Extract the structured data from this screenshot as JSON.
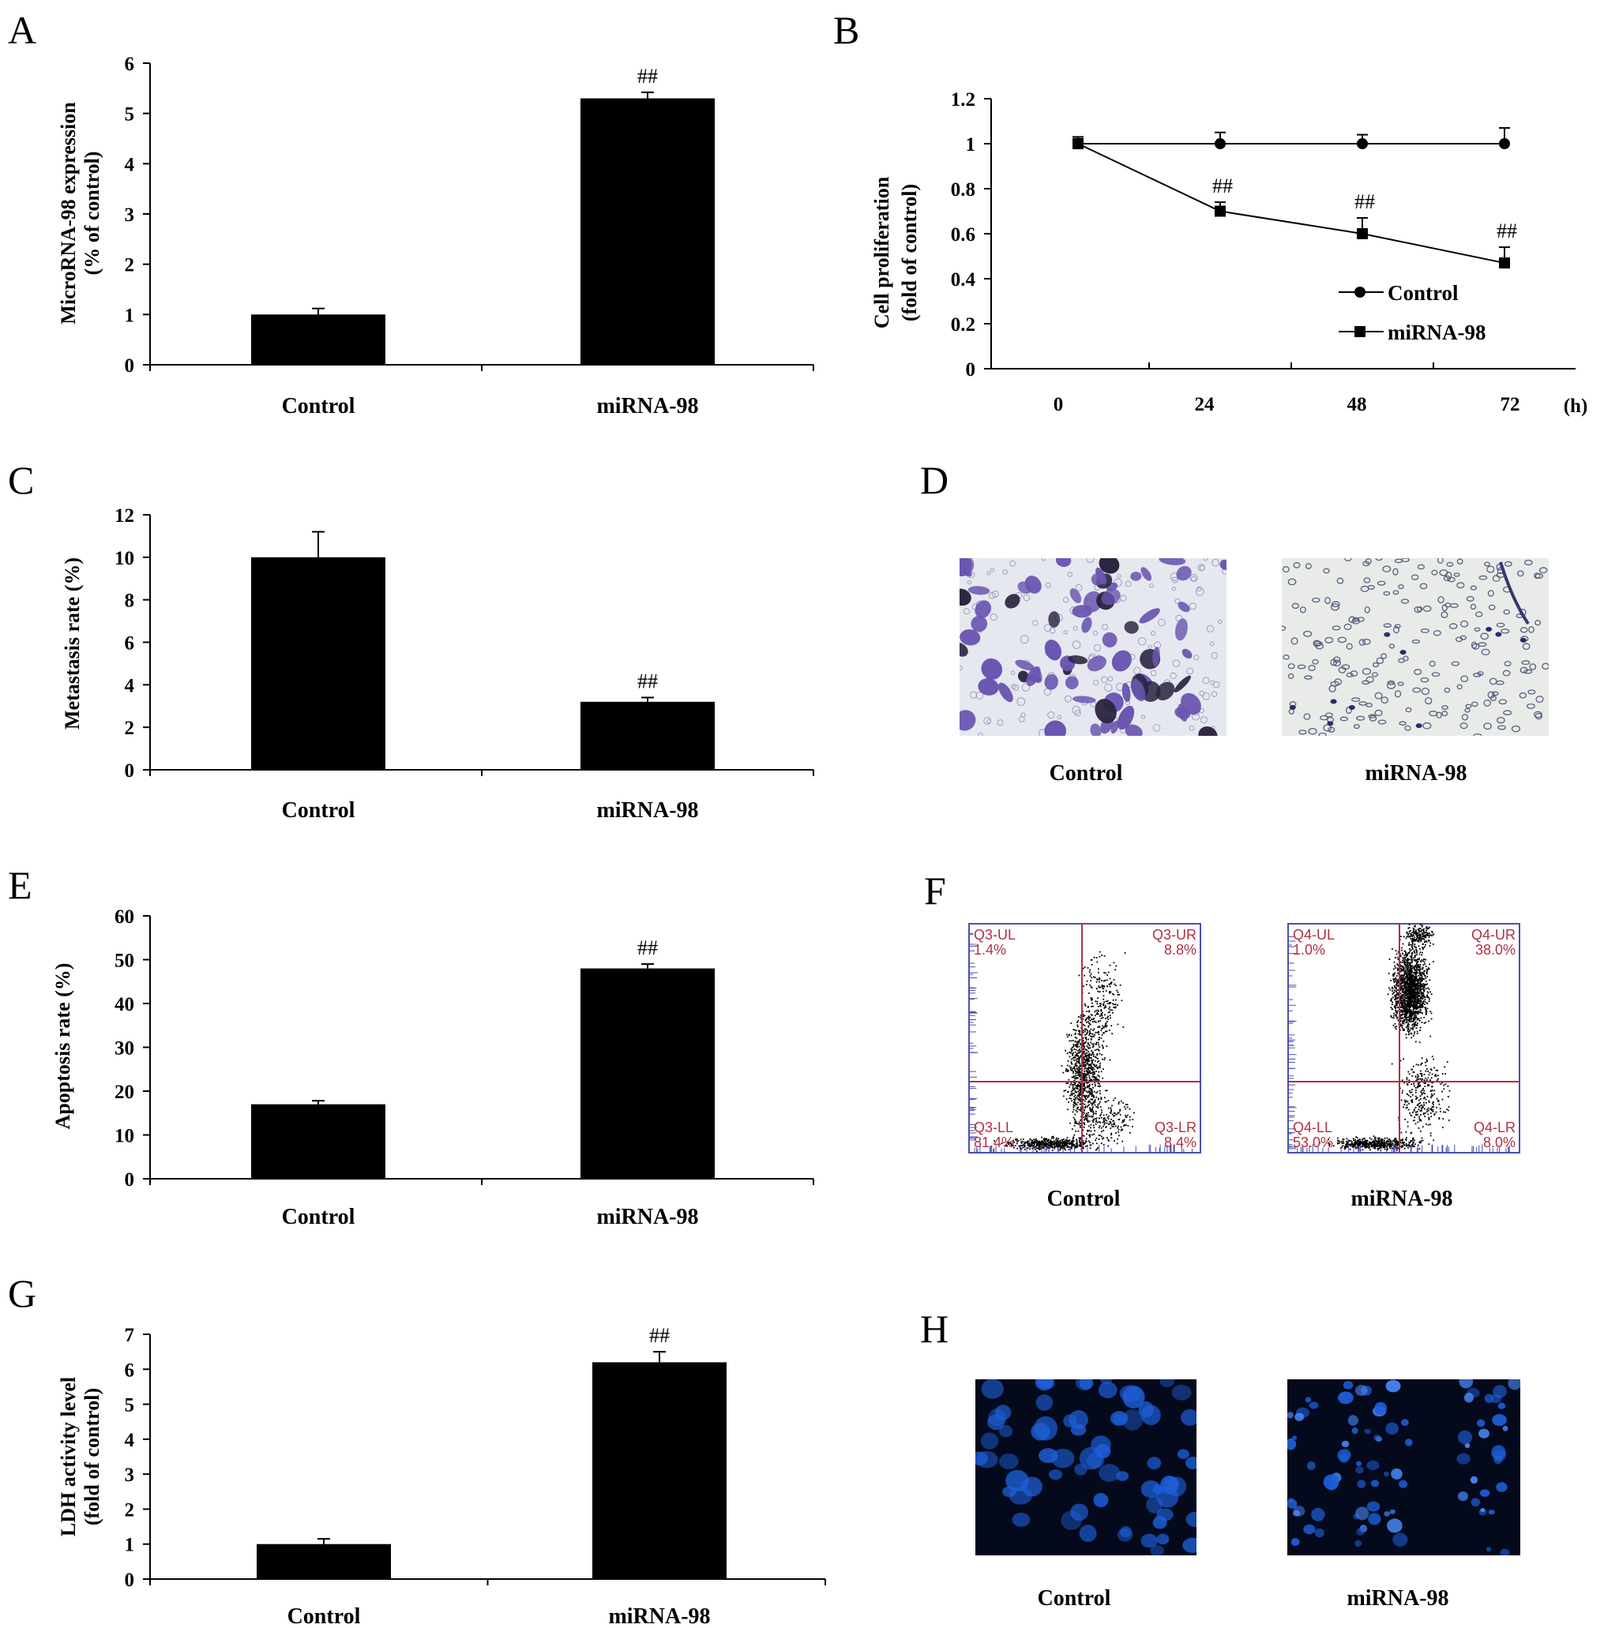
{
  "panel_labels": [
    "A",
    "B",
    "C",
    "D",
    "E",
    "F",
    "G",
    "H"
  ],
  "significance_mark": "##",
  "colors": {
    "bar": "#000000",
    "axis": "#000000",
    "crystal_violet": "#6a55b0",
    "facs_border": "#4a4fb0",
    "facs_gate": "#b0303f",
    "dapi": "#1e5fd8"
  },
  "chart_data": [
    {
      "panel": "A",
      "type": "bar",
      "categories": [
        "Control",
        "miRNA-98"
      ],
      "values": [
        1.0,
        5.3
      ],
      "errors": [
        0.12,
        0.12
      ],
      "ylabel": [
        "MicroRNA-98 expression",
        "(% of control)"
      ],
      "ylim": [
        0,
        6
      ],
      "yticks": [
        0,
        1,
        2,
        3,
        4,
        5,
        6
      ],
      "sig": [
        false,
        true
      ]
    },
    {
      "panel": "B",
      "type": "line",
      "x": [
        0,
        24,
        48,
        72
      ],
      "xticks": [
        "0",
        "24",
        "48",
        "72"
      ],
      "xunit": "(h)",
      "ylim": [
        0,
        1.2
      ],
      "yticks": [
        "0",
        "0.2",
        "0.4",
        "0.6",
        "0.8",
        "1",
        "1.2"
      ],
      "ylabel": [
        "Cell proliferation",
        "(fold of control)"
      ],
      "legend_position": "lower-right",
      "series": [
        {
          "name": "Control",
          "marker": "circle",
          "values": [
            1.0,
            1.0,
            1.0,
            1.0
          ],
          "errors": [
            0.03,
            0.05,
            0.04,
            0.07
          ]
        },
        {
          "name": "miRNA-98",
          "marker": "square",
          "values": [
            1.0,
            0.7,
            0.6,
            0.47
          ],
          "errors": [
            0.03,
            0.04,
            0.07,
            0.07
          ],
          "sig": [
            false,
            true,
            true,
            true
          ]
        }
      ]
    },
    {
      "panel": "C",
      "type": "bar",
      "categories": [
        "Control",
        "miRNA-98"
      ],
      "values": [
        10.0,
        3.2
      ],
      "errors": [
        1.2,
        0.2
      ],
      "ylabel": [
        "Metastasis rate (%)"
      ],
      "ylim": [
        0,
        12
      ],
      "yticks": [
        0,
        2,
        4,
        6,
        8,
        10,
        12
      ],
      "sig": [
        false,
        true
      ]
    },
    {
      "panel": "E",
      "type": "bar",
      "categories": [
        "Control",
        "miRNA-98"
      ],
      "values": [
        17.0,
        48.0
      ],
      "errors": [
        0.8,
        1.0
      ],
      "ylabel": [
        "Apoptosis rate (%)"
      ],
      "ylim": [
        0,
        60
      ],
      "yticks": [
        0,
        10,
        20,
        30,
        40,
        50,
        60
      ],
      "sig": [
        false,
        true
      ]
    },
    {
      "panel": "G",
      "type": "bar",
      "categories": [
        "Control",
        "miRNA-98"
      ],
      "values": [
        1.0,
        6.2
      ],
      "errors": [
        0.15,
        0.3
      ],
      "ylabel": [
        "LDH activity level",
        "(fold of control)"
      ],
      "ylim": [
        0,
        7
      ],
      "yticks": [
        0,
        1,
        2,
        3,
        4,
        5,
        6,
        7
      ],
      "sig": [
        false,
        true
      ]
    }
  ],
  "panel_D": {
    "captions": [
      "Control",
      "miRNA-98"
    ]
  },
  "panel_F": {
    "captions": [
      "Control",
      "miRNA-98"
    ],
    "plots": [
      {
        "UL": "Q3-UL",
        "UL_val": "1.4%",
        "UR": "Q3-UR",
        "UR_val": "8.8%",
        "LL": "Q3-LL",
        "LL_val": "81.4%",
        "LR": "Q3-LR",
        "LR_val": "8.4%"
      },
      {
        "UL": "Q4-UL",
        "UL_val": "1.0%",
        "UR": "Q4-UR",
        "UR_val": "38.0%",
        "LL": "Q4-LL",
        "LL_val": "53.0%",
        "LR": "Q4-LR",
        "LR_val": "8.0%"
      }
    ]
  },
  "panel_H": {
    "captions": [
      "Control",
      "miRNA-98"
    ]
  }
}
